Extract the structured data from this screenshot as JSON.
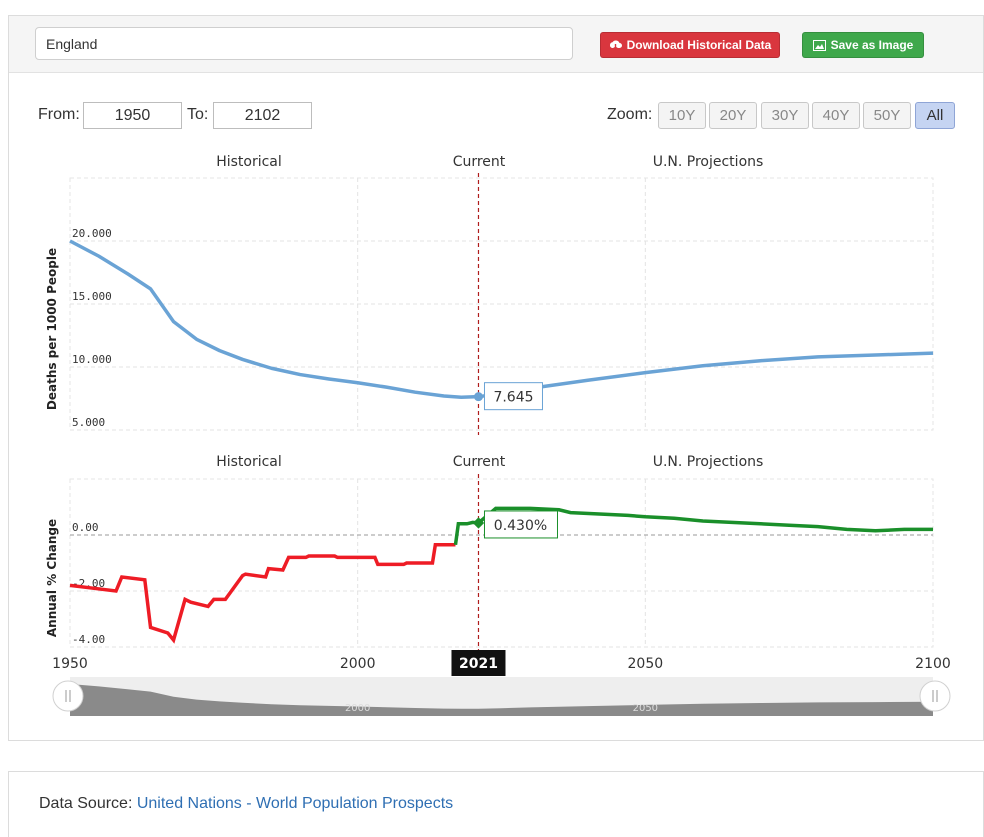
{
  "toolbar": {
    "search_value": "England",
    "download_label": "Download Historical Data",
    "save_label": "Save as Image"
  },
  "range": {
    "from_label": "From:",
    "from_value": "1950",
    "to_label": "To:",
    "to_value": "2102"
  },
  "zoom": {
    "label": "Zoom:",
    "options": [
      "10Y",
      "20Y",
      "30Y",
      "40Y",
      "50Y",
      "All"
    ],
    "active": "All"
  },
  "source": {
    "label": "Data Source:",
    "link_text": "United Nations - World Population Prospects"
  },
  "colors": {
    "death_rate": "#6aa3d5",
    "negative": "#ee1c25",
    "positive": "#1a8f2a",
    "current_line": "#b01d1d"
  },
  "chart_data": [
    {
      "type": "line",
      "ylabel": "Deaths per 1000 People",
      "section_labels": [
        "Historical",
        "Current",
        "U.N. Projections"
      ],
      "ylim": [
        5,
        25
      ],
      "yticks": [
        5,
        10,
        15,
        20
      ],
      "ytick_labels": [
        "5.000",
        "10.000",
        "15.000",
        "20.000"
      ],
      "current_year": 2021,
      "current_value_label": "7.645",
      "series": [
        {
          "x": [
            1950,
            1955,
            1960,
            1964,
            1968,
            1972,
            1976,
            1980,
            1985,
            1990,
            1995,
            2000,
            2005,
            2010,
            2015,
            2018,
            2021,
            2025,
            2030,
            2040,
            2050,
            2060,
            2070,
            2080,
            2090,
            2100
          ],
          "y": [
            20.0,
            18.8,
            17.4,
            16.2,
            13.6,
            12.2,
            11.3,
            10.6,
            9.9,
            9.4,
            9.05,
            8.75,
            8.4,
            8.0,
            7.7,
            7.6,
            7.645,
            7.9,
            8.3,
            8.95,
            9.55,
            10.1,
            10.5,
            10.8,
            10.95,
            11.1
          ]
        }
      ]
    },
    {
      "type": "line",
      "ylabel": "Annual % Change",
      "section_labels": [
        "Historical",
        "Current",
        "U.N. Projections"
      ],
      "ylim": [
        -4,
        2
      ],
      "yticks": [
        -4,
        -2,
        0
      ],
      "ytick_labels": [
        "-4.00",
        "-2.00",
        "0.00"
      ],
      "current_year": 2021,
      "current_value_label": "0.430%",
      "xticks": [
        1950,
        2000,
        2050,
        2100
      ],
      "xtick_labels": [
        "1950",
        "2000",
        "2050",
        "2100"
      ],
      "current_year_label": "2021",
      "series": [
        {
          "x": [
            1950,
            1954,
            1958,
            1959,
            1963,
            1964,
            1967,
            1968,
            1970,
            1971,
            1974,
            1975,
            1976,
            1977,
            1980,
            1980.5,
            1984,
            1984.5,
            1987,
            1988,
            1991,
            1991.5,
            1996,
            1996.5,
            2003,
            2003.5,
            2008,
            2008.5,
            2013,
            2013.5,
            2017,
            2017.5,
            2019,
            2020,
            2021,
            2024,
            2030,
            2035,
            2037,
            2042,
            2047,
            2050,
            2055,
            2060,
            2065,
            2070,
            2075,
            2080,
            2085,
            2090,
            2095,
            2100
          ],
          "y": [
            -1.8,
            -1.9,
            -2.0,
            -1.5,
            -1.6,
            -3.3,
            -3.5,
            -3.75,
            -2.3,
            -2.4,
            -2.55,
            -2.3,
            -2.3,
            -2.3,
            -1.45,
            -1.4,
            -1.5,
            -1.2,
            -1.25,
            -0.8,
            -0.8,
            -0.75,
            -0.75,
            -0.8,
            -0.8,
            -1.05,
            -1.05,
            -1.0,
            -1.0,
            -0.35,
            -0.35,
            0.4,
            0.4,
            0.45,
            0.43,
            0.95,
            0.95,
            0.9,
            0.8,
            0.75,
            0.7,
            0.65,
            0.6,
            0.5,
            0.45,
            0.4,
            0.35,
            0.3,
            0.2,
            0.15,
            0.2,
            0.2
          ]
        }
      ]
    }
  ],
  "navigator": {
    "tick_labels": [
      "2000",
      "2050"
    ]
  }
}
